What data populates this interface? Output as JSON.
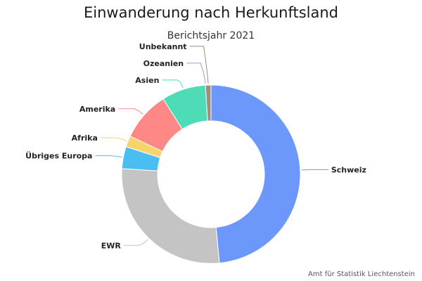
{
  "chart_data": {
    "type": "pie",
    "subtype": "donut",
    "title": "Einwanderung nach Herkunftsland",
    "subtitle": "Berichtsjahr 2021",
    "source": "Amt für Statistik Liechtenstein",
    "slices": [
      {
        "label": "Schweiz",
        "value": 48.5,
        "color": "#6c98fb"
      },
      {
        "label": "EWR",
        "value": 27.5,
        "color": "#c4c4c4"
      },
      {
        "label": "Übriges Europa",
        "value": 4.0,
        "color": "#4bbef1"
      },
      {
        "label": "Afrika",
        "value": 2.0,
        "color": "#f6d46b"
      },
      {
        "label": "Amerika",
        "value": 9.0,
        "color": "#fe8886"
      },
      {
        "label": "Asien",
        "value": 8.0,
        "color": "#4edcb7"
      },
      {
        "label": "Ozeanien",
        "value": 0.0,
        "color": "#b594da"
      },
      {
        "label": "Unbekannt",
        "value": 1.0,
        "color": "#9e8e80"
      }
    ]
  }
}
